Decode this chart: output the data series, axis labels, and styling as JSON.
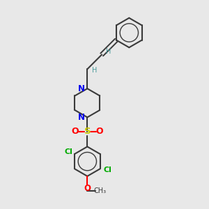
{
  "bg_color": "#e8e8e8",
  "bond_color": "#3a3a3a",
  "N_color": "#0000ee",
  "O_color": "#ff0000",
  "S_color": "#cccc00",
  "Cl_color": "#00aa00",
  "H_color": "#4a9a9a",
  "figsize": [
    3.0,
    3.0
  ],
  "dpi": 100,
  "xlim": [
    0,
    10
  ],
  "ylim": [
    0,
    10
  ]
}
